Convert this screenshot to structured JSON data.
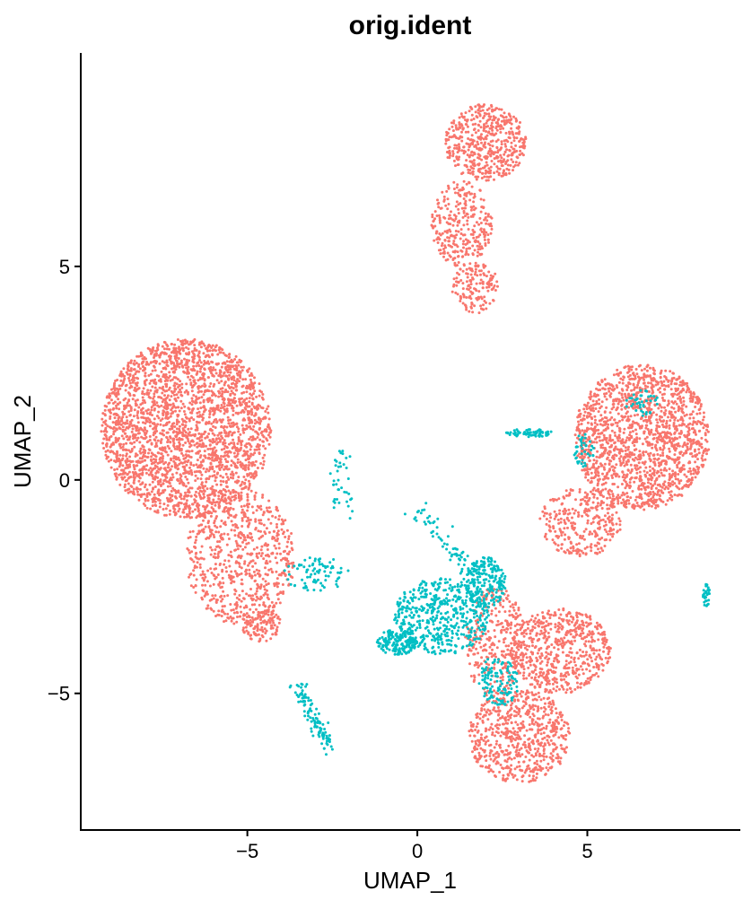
{
  "chart_data": {
    "type": "scatter",
    "title": "orig.ident",
    "xlabel": "UMAP_1",
    "ylabel": "UMAP_2",
    "xlim": [
      -9.9,
      9.5
    ],
    "ylim": [
      -8.2,
      10.0
    ],
    "xticks": [
      -5,
      0,
      5
    ],
    "yticks": [
      -5,
      0,
      5
    ],
    "xtick_labels": [
      "−5",
      "0",
      "5"
    ],
    "ytick_labels": [
      "−5",
      "0",
      "5"
    ],
    "grid": false,
    "legend": "none",
    "series": [
      {
        "color": "#F8766D",
        "clusters": [
          {
            "cx": -6.8,
            "cy": 1.2,
            "rx": 2.5,
            "ry": 2.1,
            "n": 2600
          },
          {
            "cx": -5.2,
            "cy": -1.8,
            "rx": 1.6,
            "ry": 1.6,
            "n": 700
          },
          {
            "cx": -4.6,
            "cy": -3.4,
            "rx": 0.6,
            "ry": 0.4,
            "n": 120
          },
          {
            "cx": 2.0,
            "cy": 7.9,
            "rx": 1.2,
            "ry": 0.9,
            "n": 500
          },
          {
            "cx": 1.3,
            "cy": 6.0,
            "rx": 0.9,
            "ry": 1.0,
            "n": 300
          },
          {
            "cx": 1.7,
            "cy": 4.5,
            "rx": 0.7,
            "ry": 0.6,
            "n": 150
          },
          {
            "cx": 6.6,
            "cy": 1.0,
            "rx": 2.0,
            "ry": 1.7,
            "n": 1600
          },
          {
            "cx": 4.8,
            "cy": -1.0,
            "rx": 1.2,
            "ry": 0.8,
            "n": 300
          },
          {
            "cx": 3.0,
            "cy": -6.0,
            "rx": 1.5,
            "ry": 1.1,
            "n": 650
          },
          {
            "cx": 4.2,
            "cy": -4.0,
            "rx": 1.5,
            "ry": 1.0,
            "n": 600
          },
          {
            "cx": 2.3,
            "cy": -3.8,
            "rx": 0.9,
            "ry": 1.3,
            "n": 300
          }
        ]
      },
      {
        "color": "#00BFC4",
        "clusters": [
          {
            "cx": 0.7,
            "cy": -3.2,
            "rx": 1.4,
            "ry": 0.9,
            "n": 500
          },
          {
            "cx": -0.6,
            "cy": -3.8,
            "rx": 0.6,
            "ry": 0.3,
            "n": 180
          },
          {
            "cx": 2.0,
            "cy": -2.4,
            "rx": 0.6,
            "ry": 0.6,
            "n": 200
          },
          {
            "cx": 2.4,
            "cy": -4.7,
            "rx": 0.6,
            "ry": 0.6,
            "n": 120
          },
          {
            "cx": -3.0,
            "cy": -2.2,
            "rx": 1.0,
            "ry": 0.4,
            "n": 80
          },
          {
            "cx": -2.2,
            "cy": -0.2,
            "rx": 0.4,
            "ry": 0.9,
            "n": 40
          },
          {
            "cx": 3.3,
            "cy": 1.1,
            "rx": 0.7,
            "ry": 0.1,
            "n": 60
          },
          {
            "cx": 8.5,
            "cy": -2.7,
            "rx": 0.1,
            "ry": 0.3,
            "n": 30
          },
          {
            "cx": 4.9,
            "cy": 0.7,
            "rx": 0.3,
            "ry": 0.4,
            "n": 40
          },
          {
            "cx": 6.6,
            "cy": 1.8,
            "rx": 0.5,
            "ry": 0.3,
            "n": 40
          }
        ],
        "lines": [
          {
            "x0": -3.6,
            "y0": -4.7,
            "x1": -2.6,
            "y1": -6.2,
            "n": 110,
            "w": 0.1
          },
          {
            "x0": 0.0,
            "y0": -0.7,
            "x1": 1.6,
            "y1": -2.2,
            "n": 70,
            "w": 0.15
          }
        ]
      }
    ]
  }
}
